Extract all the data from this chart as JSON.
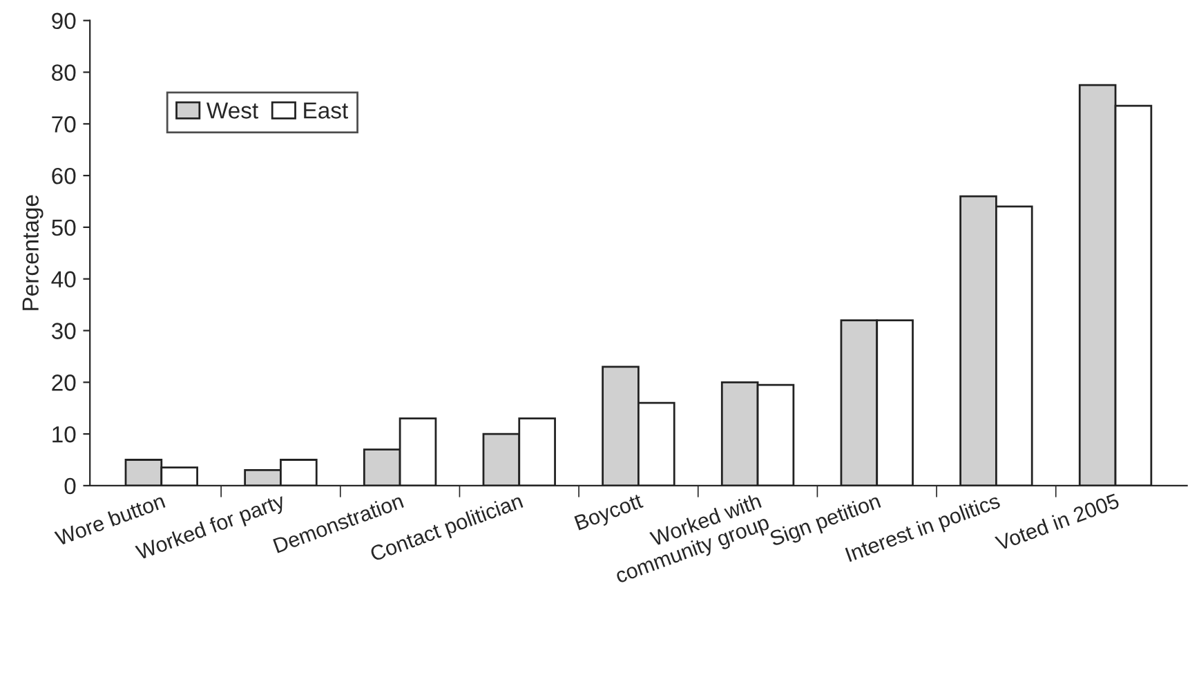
{
  "chart_data": {
    "type": "bar",
    "ylabel": "Percentage",
    "categories": [
      "Wore button",
      "Worked for party",
      "Demonstration",
      "Contact politician",
      "Boycott",
      "Worked with\ncommunity group",
      "Sign petition",
      "Interest in politics",
      "Voted in 2005"
    ],
    "series": [
      {
        "name": "West",
        "color": "#d0d0d0",
        "values": [
          5,
          3,
          7,
          10,
          23,
          20,
          32,
          56,
          77.5
        ]
      },
      {
        "name": "East",
        "color": "#ffffff",
        "values": [
          3.5,
          5,
          13,
          13,
          16,
          19.5,
          32,
          54,
          73.5
        ]
      }
    ],
    "ylim": [
      0,
      90
    ],
    "yticks": [
      0,
      10,
      20,
      30,
      40,
      50,
      60,
      70,
      80,
      90
    ],
    "grid": false,
    "legend": "top left"
  }
}
